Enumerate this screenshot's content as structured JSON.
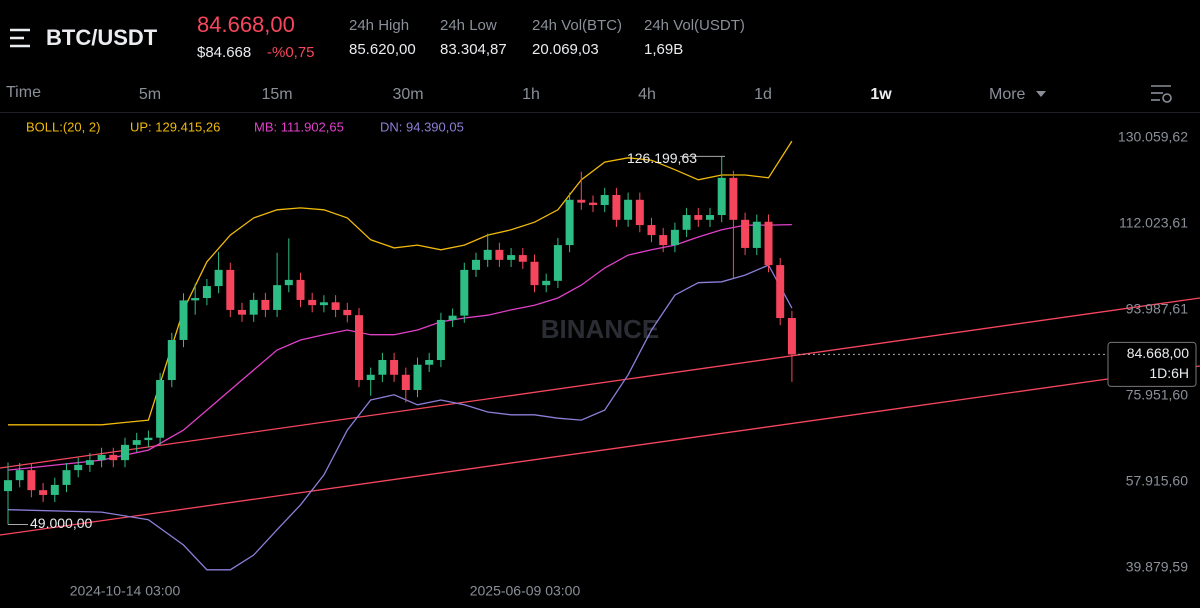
{
  "header": {
    "pair": "BTC/USDT",
    "price": "84.668,00",
    "price_usd": "$84.668",
    "change": "-%0,75",
    "stats": [
      {
        "label": "24h High",
        "value": "85.620,00"
      },
      {
        "label": "24h Low",
        "value": "83.304,87"
      },
      {
        "label": "24h Vol(BTC)",
        "value": "20.069,03"
      },
      {
        "label": "24h Vol(USDT)",
        "value": "1,69B"
      }
    ]
  },
  "tabs": [
    "Time",
    "5m",
    "15m",
    "30m",
    "1h",
    "4h",
    "1d",
    "1w",
    "More"
  ],
  "chart": {
    "type": "candlestick",
    "watermark": "BINANCE",
    "up_color": "#2ebd85",
    "down_color": "#f6465d",
    "ylim": [
      37780,
      134880
    ],
    "yticks": [
      {
        "value": 130059.62,
        "label": "130.059,62"
      },
      {
        "value": 112023.61,
        "label": "112.023,61"
      },
      {
        "value": 93987.61,
        "label": "93.987,61"
      },
      {
        "value": 75951.6,
        "label": "75.951,60"
      },
      {
        "value": 57915.6,
        "label": "57.915,60"
      },
      {
        "value": 39879.59,
        "label": "39.879,59"
      }
    ],
    "x_labels": [
      "2024-10-14 03:00",
      "2025-06-09 03:00"
    ],
    "legend": {
      "title": "BOLL:(20, 2)",
      "up": "UP: 129.415,26",
      "mb": "MB: 111.902,65",
      "dn": "DN: 94.390,05"
    },
    "high_marker": {
      "value": 126199.63,
      "label": "126.199,63"
    },
    "low_marker": {
      "value": 49000,
      "label": "49.000,00"
    },
    "last_price": {
      "value": 84668,
      "label": "84.668,00",
      "countdown": "1D:6H"
    },
    "candles": [
      [
        56000,
        62000,
        49000,
        58300
      ],
      [
        58300,
        61900,
        56800,
        60400
      ],
      [
        60400,
        61900,
        54700,
        56200
      ],
      [
        56200,
        57700,
        53700,
        55200
      ],
      [
        55200,
        58800,
        53700,
        57300
      ],
      [
        57300,
        61900,
        55800,
        60400
      ],
      [
        60400,
        63000,
        58900,
        61500
      ],
      [
        61500,
        64000,
        60000,
        62500
      ],
      [
        62500,
        65100,
        61000,
        63600
      ],
      [
        63600,
        65100,
        61000,
        62500
      ],
      [
        62500,
        67200,
        61000,
        65700
      ],
      [
        65700,
        68200,
        64200,
        66700
      ],
      [
        66700,
        68700,
        65200,
        67200
      ],
      [
        67200,
        80800,
        65700,
        79300
      ],
      [
        79300,
        89200,
        77800,
        87700
      ],
      [
        87700,
        97500,
        86200,
        96000
      ],
      [
        96000,
        99500,
        93000,
        96500
      ],
      [
        96500,
        100500,
        95000,
        99000
      ],
      [
        99000,
        106200,
        97500,
        102400
      ],
      [
        102400,
        103900,
        92500,
        94000
      ],
      [
        94000,
        95500,
        91500,
        93000
      ],
      [
        93000,
        97600,
        91500,
        96100
      ],
      [
        96100,
        97600,
        92500,
        94000
      ],
      [
        94000,
        106000,
        92500,
        99200
      ],
      [
        99200,
        109000,
        97700,
        100300
      ],
      [
        100300,
        101800,
        94600,
        96100
      ],
      [
        96100,
        97600,
        93500,
        95000
      ],
      [
        95000,
        97100,
        93500,
        95600
      ],
      [
        95600,
        97100,
        92500,
        94000
      ],
      [
        94000,
        95500,
        91400,
        92900
      ],
      [
        92900,
        94400,
        77800,
        79300
      ],
      [
        79300,
        81900,
        76000,
        80400
      ],
      [
        80400,
        85000,
        78900,
        83500
      ],
      [
        83500,
        85000,
        78900,
        80400
      ],
      [
        80400,
        81900,
        74600,
        77200
      ],
      [
        77200,
        84000,
        75700,
        82500
      ],
      [
        82500,
        85000,
        81000,
        83500
      ],
      [
        83500,
        93400,
        82000,
        91900
      ],
      [
        91900,
        94300,
        90400,
        92800
      ],
      [
        92800,
        103900,
        91300,
        102400
      ],
      [
        102400,
        106000,
        100900,
        104500
      ],
      [
        104500,
        110000,
        103000,
        106600
      ],
      [
        106600,
        108100,
        103000,
        104500
      ],
      [
        104500,
        107000,
        103000,
        105500
      ],
      [
        105500,
        107000,
        102600,
        104100
      ],
      [
        104100,
        105600,
        97700,
        99200
      ],
      [
        99200,
        101600,
        97700,
        100100
      ],
      [
        100100,
        109100,
        98600,
        107600
      ],
      [
        107600,
        118600,
        106100,
        117100
      ],
      [
        117100,
        123000,
        115000,
        116500
      ],
      [
        116500,
        118000,
        114500,
        116000
      ],
      [
        116000,
        119600,
        114500,
        118100
      ],
      [
        118100,
        119600,
        111400,
        112900
      ],
      [
        112900,
        118600,
        111400,
        117100
      ],
      [
        117100,
        118600,
        110300,
        111800
      ],
      [
        111800,
        113300,
        108200,
        109700
      ],
      [
        109700,
        111200,
        106100,
        107600
      ],
      [
        107600,
        112300,
        106100,
        110800
      ],
      [
        110800,
        115400,
        109300,
        113900
      ],
      [
        113900,
        115400,
        111400,
        112900
      ],
      [
        112900,
        115400,
        111400,
        113900
      ],
      [
        113900,
        126199.63,
        112400,
        121700
      ],
      [
        121700,
        123200,
        100700,
        112900
      ],
      [
        112900,
        114400,
        105500,
        107000
      ],
      [
        107000,
        114000,
        105500,
        112500
      ],
      [
        112500,
        114000,
        101900,
        103400
      ],
      [
        103400,
        104900,
        90800,
        92300
      ],
      [
        92300,
        93800,
        78900,
        84668
      ]
    ],
    "bands": {
      "x": [
        0,
        8,
        12,
        15,
        17,
        19,
        21,
        23,
        25,
        27,
        29,
        31,
        33,
        35,
        37,
        39,
        41,
        43,
        45,
        47,
        49,
        51,
        53,
        55,
        57,
        59,
        61,
        63,
        65,
        67
      ],
      "upper": [
        69900,
        69900,
        70900,
        94000,
        104100,
        109700,
        113300,
        115000,
        115400,
        115000,
        113300,
        108700,
        107000,
        107600,
        106600,
        107600,
        109700,
        110800,
        112400,
        115000,
        121300,
        125000,
        125900,
        125400,
        123400,
        121300,
        122300,
        122300,
        121700,
        129415.26
      ],
      "middle": [
        60400,
        62500,
        64600,
        68800,
        73000,
        77200,
        81400,
        85600,
        87700,
        88800,
        89800,
        88800,
        88800,
        89800,
        91500,
        92300,
        92900,
        94000,
        95000,
        96500,
        99200,
        102800,
        105500,
        106600,
        107600,
        109300,
        110800,
        111800,
        111800,
        111902.65
      ],
      "lower": [
        52100,
        51600,
        50000,
        44700,
        39500,
        39500,
        42600,
        47900,
        53100,
        59400,
        68800,
        75100,
        76200,
        74100,
        75100,
        74100,
        72600,
        72000,
        72000,
        71300,
        70900,
        73000,
        80400,
        89800,
        97100,
        99700,
        99900,
        101300,
        103400,
        94390.05
      ],
      "upper_color": "#f0b90b",
      "middle_color": "#e040c8",
      "lower_color": "#8b7fd8"
    }
  }
}
